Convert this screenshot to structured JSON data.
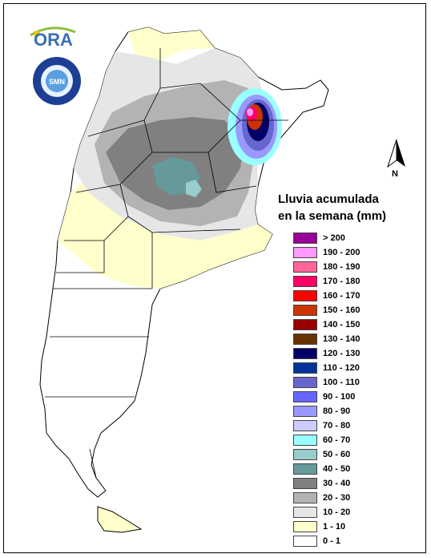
{
  "logo": {
    "text": "ORA",
    "icon": "sun-arc-logo"
  },
  "seal": {
    "icon": "smn-seal",
    "text": "SERVICIO METEOROLOGICO NACIONAL ARGENTINA",
    "center": "SMN"
  },
  "compass": {
    "label": "N",
    "icon": "north-arrow-icon"
  },
  "legend": {
    "title_line1": "Lluvia acumulada",
    "title_line2": "en la semana (mm)",
    "items": [
      {
        "label": "> 200",
        "color": "#990099"
      },
      {
        "label": "190 - 200",
        "color": "#ff99ff"
      },
      {
        "label": "180 - 190",
        "color": "#ff6699"
      },
      {
        "label": "170 - 180",
        "color": "#ff0066"
      },
      {
        "label": "160 - 170",
        "color": "#ff0000"
      },
      {
        "label": "150 - 160",
        "color": "#cc3300"
      },
      {
        "label": "140 - 150",
        "color": "#990000"
      },
      {
        "label": "130 - 140",
        "color": "#663300"
      },
      {
        "label": "120 - 130",
        "color": "#000066"
      },
      {
        "label": "110 - 120",
        "color": "#003399"
      },
      {
        "label": "100 - 110",
        "color": "#6666cc"
      },
      {
        "label": "90 - 100",
        "color": "#6666ff"
      },
      {
        "label": "80 - 90",
        "color": "#9999ff"
      },
      {
        "label": "70 - 80",
        "color": "#ccccff"
      },
      {
        "label": "60 - 70",
        "color": "#99ffff"
      },
      {
        "label": "50 - 60",
        "color": "#99cccc"
      },
      {
        "label": "40 - 50",
        "color": "#669999"
      },
      {
        "label": "30 - 40",
        "color": "#808080"
      },
      {
        "label": "20 - 30",
        "color": "#b3b3b3"
      },
      {
        "label": "10 - 20",
        "color": "#e6e6e6"
      },
      {
        "label": "1 - 10",
        "color": "#ffffcc"
      },
      {
        "label": "0 - 1",
        "color": "#ffffff"
      }
    ]
  }
}
